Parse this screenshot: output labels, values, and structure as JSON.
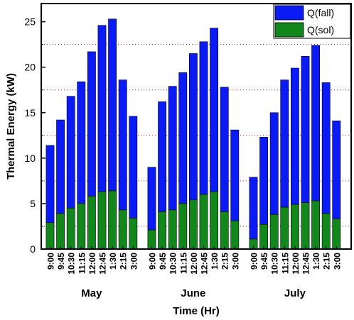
{
  "chart_data": {
    "type": "bar",
    "stacked": true,
    "ylabel": "Thermal Energy (kW)",
    "xlabel": "Time (Hr)",
    "ylim": [
      0,
      27
    ],
    "yticks": [
      0,
      5,
      10,
      15,
      20,
      25
    ],
    "grid": "dotted horizontal minor lines",
    "legend_position": "top-right",
    "times": [
      "9:00",
      "9:45",
      "10:30",
      "11:15",
      "12:00",
      "12:45",
      "1:30",
      "2:15",
      "3:00"
    ],
    "groups": [
      {
        "label": "May",
        "total": [
          11.4,
          14.2,
          16.8,
          18.4,
          21.7,
          24.6,
          25.3,
          18.6,
          14.6
        ],
        "sol": [
          2.9,
          3.9,
          4.5,
          5.0,
          5.8,
          6.3,
          6.4,
          4.3,
          3.4
        ]
      },
      {
        "label": "June",
        "total": [
          9.0,
          16.2,
          17.9,
          19.4,
          21.5,
          22.8,
          24.3,
          17.8,
          13.1
        ],
        "sol": [
          2.1,
          4.1,
          4.3,
          5.0,
          5.4,
          6.0,
          6.3,
          4.1,
          3.1
        ]
      },
      {
        "label": "July",
        "total": [
          7.9,
          12.3,
          15.0,
          18.6,
          19.9,
          21.2,
          22.4,
          18.3,
          14.1
        ],
        "sol": [
          1.1,
          2.7,
          3.8,
          4.6,
          4.9,
          5.1,
          5.3,
          3.9,
          3.3
        ]
      }
    ],
    "series": [
      {
        "name": "Q(fall)",
        "color": "#0a1bf5"
      },
      {
        "name": "Q(sol)",
        "color": "#12871c"
      }
    ]
  }
}
